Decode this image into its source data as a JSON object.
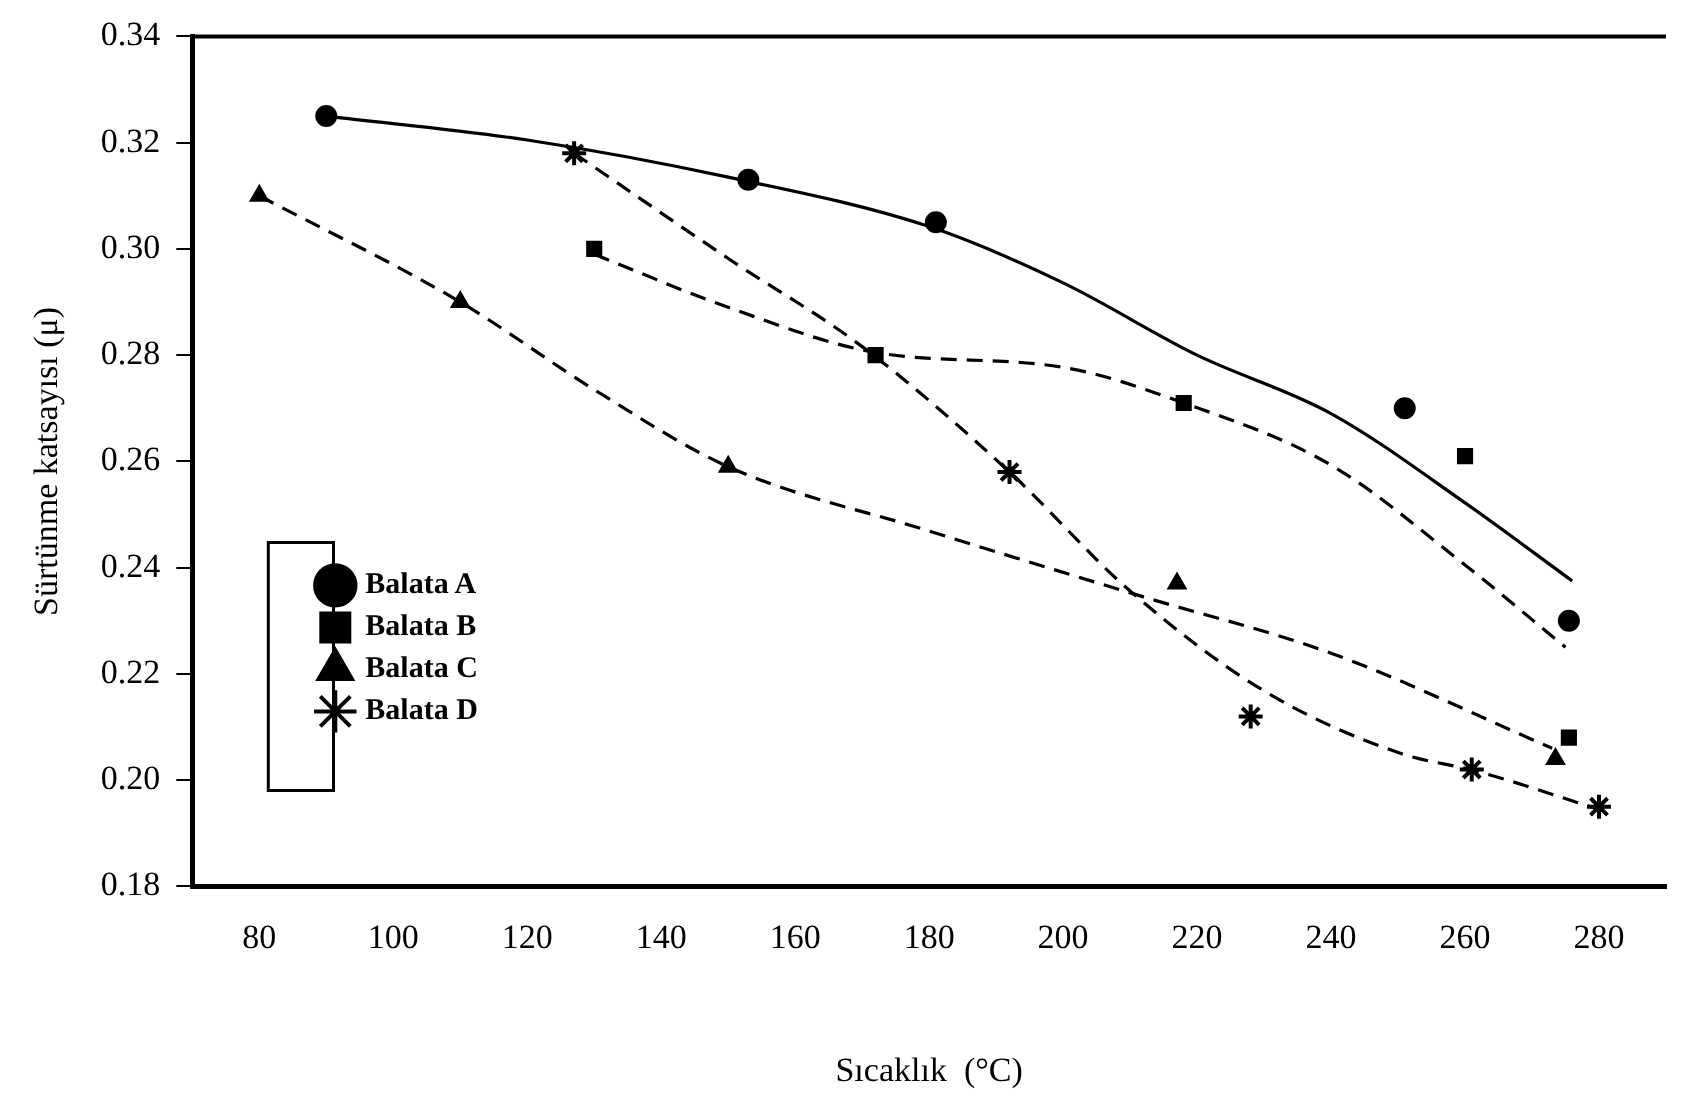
{
  "chart_data": {
    "type": "scatter",
    "xlabel": "Sıcaklık  (°C)",
    "ylabel": "Sürtünme katsayısı (μ)",
    "xlim": [
      70,
      290
    ],
    "xticks": [
      80,
      100,
      120,
      140,
      160,
      180,
      200,
      220,
      240,
      260,
      280
    ],
    "ylim": [
      0.18,
      0.34
    ],
    "yticks": [
      {
        "value": 0.18,
        "label": "0.18"
      },
      {
        "value": 0.2,
        "label": "0.20"
      },
      {
        "value": 0.22,
        "label": "0.22"
      },
      {
        "value": 0.24,
        "label": "0.24"
      },
      {
        "value": 0.26,
        "label": "0.26"
      },
      {
        "value": 0.28,
        "label": "0.28"
      },
      {
        "value": 0.3,
        "label": "0.30"
      },
      {
        "value": 0.32,
        "label": "0.32"
      },
      {
        "value": 0.34,
        "label": "0.34"
      }
    ],
    "grid": false,
    "legend": "bottom left",
    "series": [
      {
        "name": "Balata A",
        "type": "scatter",
        "marker": "circle",
        "color": "#000000",
        "x": [
          90,
          153,
          181,
          251,
          275.5
        ],
        "values": [
          0.325,
          0.313,
          0.305,
          0.27,
          0.23
        ]
      },
      {
        "name": "Balata B",
        "type": "scatter",
        "marker": "square",
        "color": "#000000",
        "x": [
          130,
          172,
          218,
          260,
          275.5
        ],
        "values": [
          0.3,
          0.28,
          0.271,
          0.261,
          0.208
        ]
      },
      {
        "name": "Balata C",
        "type": "scatter",
        "marker": "triangle",
        "color": "#000000",
        "x": [
          80,
          110,
          150,
          217,
          273.5
        ],
        "values": [
          0.31,
          0.29,
          0.259,
          0.237,
          0.204
        ]
      },
      {
        "name": "Balata D",
        "type": "scatter",
        "marker": "cross",
        "color": "#000000",
        "x": [
          127,
          192,
          228,
          261,
          280
        ],
        "values": [
          0.318,
          0.258,
          0.212,
          0.202,
          0.195
        ]
      },
      {
        "type": "line",
        "marker": "none",
        "line_style": "solid",
        "color": "#000000",
        "x": [
          90,
          120,
          150,
          180,
          200,
          220,
          240,
          260,
          276
        ],
        "values": [
          0.325,
          0.3205,
          0.3135,
          0.3042,
          0.2936,
          0.28,
          0.269,
          0.2522,
          0.2375
        ]
      },
      {
        "type": "line",
        "marker": "none",
        "line_style": "dashed",
        "color": "#000000",
        "x": [
          130,
          150,
          172,
          200,
          218,
          240,
          260,
          275
        ],
        "values": [
          0.299,
          0.289,
          0.2805,
          0.2777,
          0.271,
          0.2593,
          0.2405,
          0.225
        ]
      },
      {
        "type": "line",
        "marker": "none",
        "line_style": "dashed",
        "color": "#000000",
        "x": [
          80,
          110,
          130,
          150,
          180,
          212,
          240,
          273
        ],
        "values": [
          0.31,
          0.29,
          0.2735,
          0.259,
          0.2469,
          0.2345,
          0.2239,
          0.206
        ]
      },
      {
        "type": "line",
        "marker": "none",
        "line_style": "dashed",
        "color": "#000000",
        "x": [
          127,
          150,
          170,
          192,
          210,
          230,
          250,
          262,
          280
        ],
        "values": [
          0.318,
          0.2982,
          0.2816,
          0.258,
          0.2356,
          0.2168,
          0.2052,
          0.2016,
          0.1945
        ]
      }
    ]
  }
}
